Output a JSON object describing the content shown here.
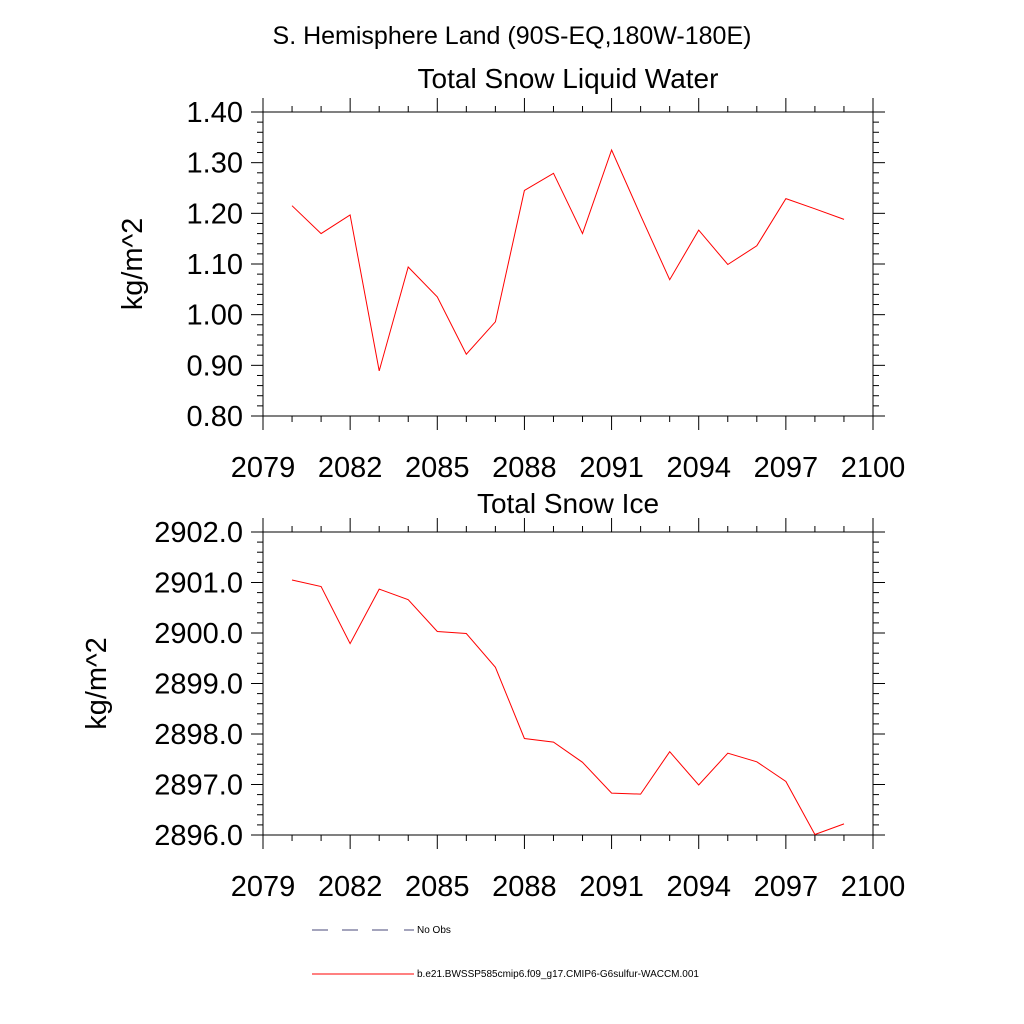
{
  "figure": {
    "title": "S. Hemisphere Land (90S-EQ,180W-180E)"
  },
  "chart_data": [
    {
      "type": "line",
      "title": "Total Snow Liquid Water",
      "xlabel": "",
      "ylabel": "kg/m^2",
      "xlim": [
        2079,
        2100
      ],
      "ylim": [
        0.8,
        1.4
      ],
      "x_ticks": [
        2079,
        2082,
        2085,
        2088,
        2091,
        2094,
        2097,
        2100
      ],
      "x_tick_labels": [
        "2079",
        "2082",
        "2085",
        "2088",
        "2091",
        "2094",
        "2097",
        "2100"
      ],
      "y_ticks": [
        0.8,
        0.9,
        1.0,
        1.1,
        1.2,
        1.3,
        1.4
      ],
      "y_tick_labels": [
        "0.80",
        "0.90",
        "1.00",
        "1.10",
        "1.20",
        "1.30",
        "1.40"
      ],
      "y_minor_step": 0.02,
      "x_minor_step": 1,
      "grid": false,
      "series": [
        {
          "name": "b.e21.BWSSP585cmip6.f09_g17.CMIP6-G6sulfur-WACCM.001",
          "color": "#ff0000",
          "x": [
            2080,
            2081,
            2082,
            2083,
            2084,
            2085,
            2086,
            2087,
            2088,
            2089,
            2090,
            2091,
            2092,
            2093,
            2094,
            2095,
            2096,
            2097,
            2098,
            2099
          ],
          "values": [
            1.215,
            1.16,
            1.197,
            0.889,
            1.094,
            1.035,
            0.922,
            0.986,
            1.245,
            1.279,
            1.16,
            1.325,
            1.196,
            1.069,
            1.167,
            1.099,
            1.136,
            1.229,
            1.209,
            1.188
          ]
        }
      ]
    },
    {
      "type": "line",
      "title": "Total Snow Ice",
      "xlabel": "",
      "ylabel": "kg/m^2",
      "xlim": [
        2079,
        2100
      ],
      "ylim": [
        2896.0,
        2902.0
      ],
      "x_ticks": [
        2079,
        2082,
        2085,
        2088,
        2091,
        2094,
        2097,
        2100
      ],
      "x_tick_labels": [
        "2079",
        "2082",
        "2085",
        "2088",
        "2091",
        "2094",
        "2097",
        "2100"
      ],
      "y_ticks": [
        2896.0,
        2897.0,
        2898.0,
        2899.0,
        2900.0,
        2901.0,
        2902.0
      ],
      "y_tick_labels": [
        "2896.0",
        "2897.0",
        "2898.0",
        "2899.0",
        "2900.0",
        "2901.0",
        "2902.0"
      ],
      "y_minor_step": 0.2,
      "x_minor_step": 1,
      "grid": false,
      "series": [
        {
          "name": "b.e21.BWSSP585cmip6.f09_g17.CMIP6-G6sulfur-WACCM.001",
          "color": "#ff0000",
          "x": [
            2080,
            2081,
            2082,
            2083,
            2084,
            2085,
            2086,
            2087,
            2088,
            2089,
            2090,
            2091,
            2092,
            2093,
            2094,
            2095,
            2096,
            2097,
            2098,
            2099
          ],
          "values": [
            2901.05,
            2900.92,
            2899.79,
            2900.87,
            2900.66,
            2900.03,
            2899.99,
            2899.32,
            2897.91,
            2897.84,
            2897.44,
            2896.83,
            2896.81,
            2897.65,
            2896.99,
            2897.62,
            2897.45,
            2897.06,
            2896.01,
            2896.22
          ]
        }
      ]
    }
  ],
  "legend": {
    "placement": "bottom",
    "entries": [
      {
        "label": "No Obs",
        "style": "dashed",
        "color": "#4a4a7a"
      },
      {
        "label": "b.e21.BWSSP585cmip6.f09_g17.CMIP6-G6sulfur-WACCM.001",
        "style": "solid",
        "color": "#ff0000"
      }
    ]
  }
}
